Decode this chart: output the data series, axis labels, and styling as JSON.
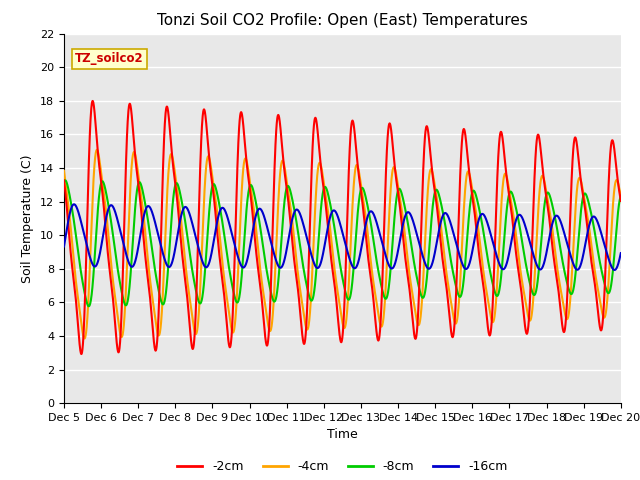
{
  "title": "Tonzi Soil CO2 Profile: Open (East) Temperatures",
  "xlabel": "Time",
  "ylabel": "Soil Temperature (C)",
  "ylim": [
    0,
    22
  ],
  "xlim_days": [
    5,
    20
  ],
  "tick_labels": [
    "Dec 5",
    "Dec 6",
    "Dec 7",
    "Dec 8",
    "Dec 9",
    "Dec 10",
    "Dec 11",
    "Dec 12",
    "Dec 13",
    "Dec 14",
    "Dec 15",
    "Dec 16",
    "Dec 17",
    "Dec 18",
    "Dec 19",
    "Dec 20"
  ],
  "colors": {
    "-2cm": "#ff0000",
    "-4cm": "#ffa500",
    "-8cm": "#00cc00",
    "-16cm": "#0000cc"
  },
  "legend_label": "TZ_soilco2",
  "legend_box_color": "#ffffcc",
  "legend_box_edge": "#ccaa00",
  "background_color": "#e8e8e8",
  "grid_color": "#ffffff",
  "title_fontsize": 11,
  "axis_fontsize": 9,
  "tick_fontsize": 8
}
